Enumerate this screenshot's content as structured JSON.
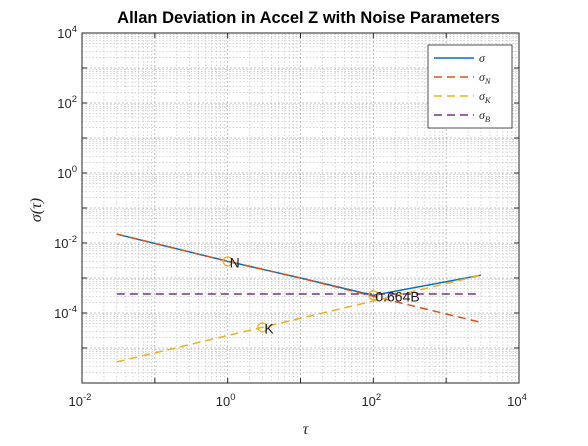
{
  "chart_data": {
    "type": "line",
    "title": "Allan Deviation in Accel Z with Noise Parameters",
    "xlabel": "τ",
    "ylabel": "σ(τ)",
    "xscale": "log",
    "yscale": "log",
    "xlim": [
      0.01,
      10000
    ],
    "ylim": [
      1e-06,
      10000
    ],
    "grid": true,
    "minor_grid": true,
    "legend_position": "top-right",
    "x_ticks": [
      {
        "base": "10",
        "exp": "-2"
      },
      {
        "base": "10",
        "exp": "0"
      },
      {
        "base": "10",
        "exp": "2"
      },
      {
        "base": "10",
        "exp": "4"
      }
    ],
    "y_ticks": [
      {
        "base": "10",
        "exp": "4"
      },
      {
        "base": "10",
        "exp": "2"
      },
      {
        "base": "10",
        "exp": "0"
      },
      {
        "base": "10",
        "exp": "-2"
      },
      {
        "base": "10",
        "exp": "-4"
      }
    ],
    "series": [
      {
        "name": "σ",
        "legend_base": "σ",
        "legend_sub": "",
        "color": "#0072BD",
        "style": "solid",
        "x": [
          0.03,
          1,
          10,
          100,
          3000
        ],
        "y": [
          0.018,
          0.003,
          0.001,
          0.00032,
          0.0012
        ]
      },
      {
        "name": "σN",
        "legend_base": "σ",
        "legend_sub": "N",
        "color": "#D95319",
        "style": "dashed",
        "x": [
          0.03,
          1,
          10,
          100,
          3000
        ],
        "y": [
          0.018,
          0.003,
          0.001,
          0.0003,
          5.4e-05
        ]
      },
      {
        "name": "σK",
        "legend_base": "σ",
        "legend_sub": "K",
        "color": "#EDB120",
        "style": "dashed",
        "x": [
          0.03,
          3,
          100,
          3000
        ],
        "y": [
          4e-06,
          3.9e-05,
          0.00022,
          0.0012
        ]
      },
      {
        "name": "σB",
        "legend_base": "σ",
        "legend_sub": "B",
        "color": "#7E2F8E",
        "style": "dashed",
        "x": [
          0.03,
          3000
        ],
        "y": [
          0.00035,
          0.00035
        ]
      }
    ],
    "annotations": [
      {
        "text": "N",
        "x": 1,
        "y": 0.003,
        "marker_color": "#EDB120"
      },
      {
        "text": "K",
        "x": 3,
        "y": 3.9e-05,
        "marker_color": "#EDB120"
      },
      {
        "text": "0.664B",
        "x": 100,
        "y": 0.00032,
        "marker_color": "#EDB120"
      }
    ]
  }
}
